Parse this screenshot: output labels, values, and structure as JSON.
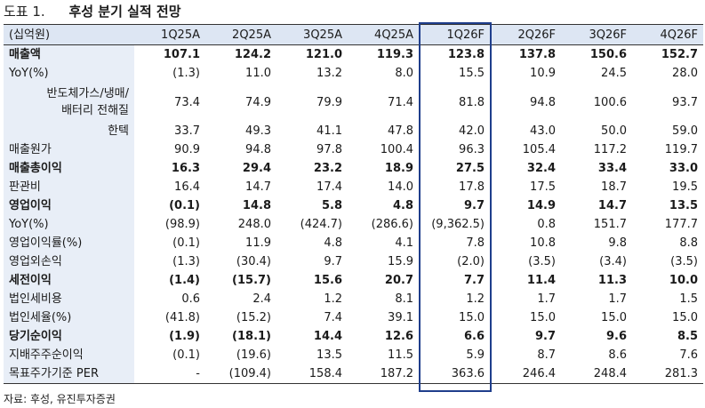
{
  "title": {
    "figure": "도표 1.",
    "text": "후성 분기 실적 전망"
  },
  "table": {
    "headers": [
      "(십억원)",
      "1Q25A",
      "2Q25A",
      "3Q25A",
      "4Q25A",
      "1Q26F",
      "2Q26F",
      "3Q26F",
      "4Q26F"
    ],
    "rows": [
      {
        "label": "매출액",
        "bold": true,
        "values": [
          "107.1",
          "124.2",
          "121.0",
          "119.3",
          "123.8",
          "137.8",
          "150.6",
          "152.7"
        ]
      },
      {
        "label": "YoY(%)",
        "values": [
          "(1.3)",
          "11.0",
          "13.2",
          "8.0",
          "15.5",
          "10.9",
          "24.5",
          "28.0"
        ]
      },
      {
        "label": "반도체가스/냉매/배터리 전해질",
        "label_line1": "반도체가스/냉매/",
        "label_line2": "배터리 전해질",
        "tall": true,
        "right": true,
        "values": [
          "73.4",
          "74.9",
          "79.9",
          "71.4",
          "81.8",
          "94.8",
          "100.6",
          "93.7"
        ]
      },
      {
        "label": "한텍",
        "right": true,
        "values": [
          "33.7",
          "49.3",
          "41.1",
          "47.8",
          "42.0",
          "43.0",
          "50.0",
          "59.0"
        ]
      },
      {
        "label": "매출원가",
        "values": [
          "90.9",
          "94.8",
          "97.8",
          "100.4",
          "96.3",
          "105.4",
          "117.2",
          "119.7"
        ]
      },
      {
        "label": "매출총이익",
        "bold": true,
        "values": [
          "16.3",
          "29.4",
          "23.2",
          "18.9",
          "27.5",
          "32.4",
          "33.4",
          "33.0"
        ]
      },
      {
        "label": "판관비",
        "values": [
          "16.4",
          "14.7",
          "17.4",
          "14.0",
          "17.8",
          "17.5",
          "18.7",
          "19.5"
        ]
      },
      {
        "label": "영업이익",
        "bold": true,
        "values": [
          "(0.1)",
          "14.8",
          "5.8",
          "4.8",
          "9.7",
          "14.9",
          "14.7",
          "13.5"
        ]
      },
      {
        "label": "YoY(%)",
        "values": [
          "(98.9)",
          "248.0",
          "(424.7)",
          "(286.6)",
          "(9,362.5)",
          "0.8",
          "151.7",
          "177.7"
        ]
      },
      {
        "label": "영업이익률(%)",
        "values": [
          "(0.1)",
          "11.9",
          "4.8",
          "4.1",
          "7.8",
          "10.8",
          "9.8",
          "8.8"
        ]
      },
      {
        "label": "영업외손익",
        "values": [
          "(1.3)",
          "(30.4)",
          "9.7",
          "15.9",
          "(2.0)",
          "(3.5)",
          "(3.4)",
          "(3.5)"
        ]
      },
      {
        "label": "세전이익",
        "bold": true,
        "values": [
          "(1.4)",
          "(15.7)",
          "15.6",
          "20.7",
          "7.7",
          "11.4",
          "11.3",
          "10.0"
        ]
      },
      {
        "label": "법인세비용",
        "values": [
          "0.6",
          "2.4",
          "1.2",
          "8.1",
          "1.2",
          "1.7",
          "1.7",
          "1.5"
        ]
      },
      {
        "label": "법인세율(%)",
        "values": [
          "(41.8)",
          "(15.2)",
          "7.4",
          "39.1",
          "15.0",
          "15.0",
          "15.0",
          "15.0"
        ]
      },
      {
        "label": "당기순이익",
        "bold": true,
        "values": [
          "(1.9)",
          "(18.1)",
          "14.4",
          "12.6",
          "6.6",
          "9.7",
          "9.6",
          "8.5"
        ]
      },
      {
        "label": "지배주주순이익",
        "values": [
          "(0.1)",
          "(19.6)",
          "13.5",
          "11.5",
          "5.9",
          "8.7",
          "8.6",
          "7.6"
        ]
      },
      {
        "label": "목표주가기준 PER",
        "values": [
          "-",
          "(109.4)",
          "158.4",
          "187.2",
          "363.6",
          "246.4",
          "248.4",
          "281.3"
        ]
      }
    ]
  },
  "highlight_column": "1Q26F",
  "colors": {
    "header_bg": "#dde6f3",
    "label_bg": "#e8eef7",
    "highlight_border": "#1f3e8c"
  },
  "source": "자료: 후성, 유진투자증권"
}
